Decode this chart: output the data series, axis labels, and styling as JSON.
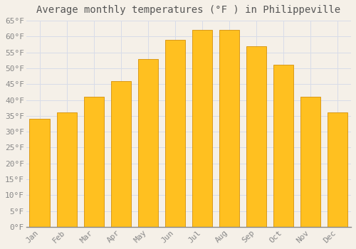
{
  "title": "Average monthly temperatures (°F ) in Philippeville",
  "months": [
    "Jan",
    "Feb",
    "Mar",
    "Apr",
    "May",
    "Jun",
    "Jul",
    "Aug",
    "Sep",
    "Oct",
    "Nov",
    "Dec"
  ],
  "values": [
    34,
    36,
    41,
    46,
    53,
    59,
    62,
    62,
    57,
    51,
    41,
    36
  ],
  "bar_color": "#FFC020",
  "bar_edge_color": "#D4900A",
  "background_color": "#F5F0E8",
  "plot_bg_color": "#F5F0E8",
  "grid_color": "#D8DCE8",
  "ylim": [
    0,
    65
  ],
  "yticks": [
    0,
    5,
    10,
    15,
    20,
    25,
    30,
    35,
    40,
    45,
    50,
    55,
    60,
    65
  ],
  "title_fontsize": 10,
  "tick_fontsize": 8,
  "tick_color": "#888888",
  "title_color": "#555555",
  "bar_width": 0.75
}
